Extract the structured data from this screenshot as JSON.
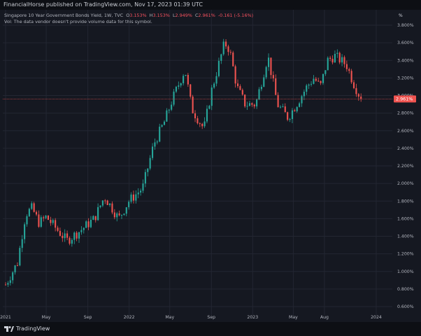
{
  "header": {
    "published": "FinancialHorse published on TradingView.com, Nov 17, 2023 01:39 UTC"
  },
  "legend": {
    "symbol": "Singapore 10 Year Government Bonds Yield, 1W, TVC",
    "open_label": "O",
    "open": "3.153%",
    "high_label": "H",
    "high": "3.153%",
    "low_label": "L",
    "low": "2.949%",
    "close_label": "C",
    "close": "2.961%",
    "change": "-0.161 (-5.16%)",
    "volume_note": "Vol: The data vendor doesn't provide volume data for this symbol."
  },
  "price_axis": {
    "unit_label": "%"
  },
  "footer": {
    "brand": "TradingView"
  },
  "colors": {
    "up": "#26a69a",
    "down": "#ef5350",
    "background": "#151821",
    "grid": "#232632",
    "last_price_line": "#ef5350"
  },
  "chart_data": {
    "type": "candlestick",
    "title": "Singapore 10 Year Government Bonds Yield, 1W, TVC",
    "interval": "1W",
    "y_unit": "%",
    "ylim": [
      0.6,
      3.9
    ],
    "y_ticks": [
      "3.800%",
      "3.600%",
      "3.400%",
      "3.200%",
      "3.000%",
      "2.800%",
      "2.600%",
      "2.400%",
      "2.200%",
      "2.000%",
      "1.800%",
      "1.600%",
      "1.400%",
      "1.200%",
      "1.000%",
      "0.800%",
      "0.600%"
    ],
    "x_ticks": [
      "2021",
      "May",
      "Sep",
      "2022",
      "May",
      "Sep",
      "2023",
      "May",
      "Aug",
      "2024"
    ],
    "x_range": [
      "2021-01-01",
      "2024-01-30"
    ],
    "last_price": "2.961%",
    "grid": true,
    "keypoints": [
      {
        "date": "2021-01-01",
        "value": 0.85
      },
      {
        "date": "2021-02-05",
        "value": 1.1
      },
      {
        "date": "2021-03-01",
        "value": 1.65
      },
      {
        "date": "2021-03-20",
        "value": 1.72
      },
      {
        "date": "2021-04-10",
        "value": 1.55
      },
      {
        "date": "2021-05-01",
        "value": 1.62
      },
      {
        "date": "2021-06-01",
        "value": 1.48
      },
      {
        "date": "2021-07-01",
        "value": 1.35
      },
      {
        "date": "2021-08-05",
        "value": 1.45
      },
      {
        "date": "2021-09-20",
        "value": 1.6
      },
      {
        "date": "2021-10-20",
        "value": 1.85
      },
      {
        "date": "2021-11-15",
        "value": 1.7
      },
      {
        "date": "2021-12-01",
        "value": 1.6
      },
      {
        "date": "2021-12-31",
        "value": 1.8
      },
      {
        "date": "2022-02-10",
        "value": 1.95
      },
      {
        "date": "2022-03-15",
        "value": 2.45
      },
      {
        "date": "2022-04-15",
        "value": 2.7
      },
      {
        "date": "2022-05-08",
        "value": 2.95
      },
      {
        "date": "2022-06-15",
        "value": 3.3
      },
      {
        "date": "2022-07-05",
        "value": 2.85
      },
      {
        "date": "2022-08-10",
        "value": 2.62
      },
      {
        "date": "2022-09-01",
        "value": 3.05
      },
      {
        "date": "2022-10-10",
        "value": 3.6
      },
      {
        "date": "2022-10-25",
        "value": 3.52
      },
      {
        "date": "2022-11-15",
        "value": 3.1
      },
      {
        "date": "2022-12-10",
        "value": 2.9
      },
      {
        "date": "2023-01-10",
        "value": 2.9
      },
      {
        "date": "2023-02-15",
        "value": 3.45
      },
      {
        "date": "2023-03-15",
        "value": 2.9
      },
      {
        "date": "2023-04-15",
        "value": 2.75
      },
      {
        "date": "2023-05-10",
        "value": 2.9
      },
      {
        "date": "2023-06-10",
        "value": 3.1
      },
      {
        "date": "2023-07-01",
        "value": 3.2
      },
      {
        "date": "2023-07-20",
        "value": 3.1
      },
      {
        "date": "2023-08-10",
        "value": 3.4
      },
      {
        "date": "2023-09-01",
        "value": 3.45
      },
      {
        "date": "2023-10-05",
        "value": 3.35
      },
      {
        "date": "2023-10-25",
        "value": 3.15
      },
      {
        "date": "2023-11-17",
        "value": 2.961
      }
    ]
  }
}
